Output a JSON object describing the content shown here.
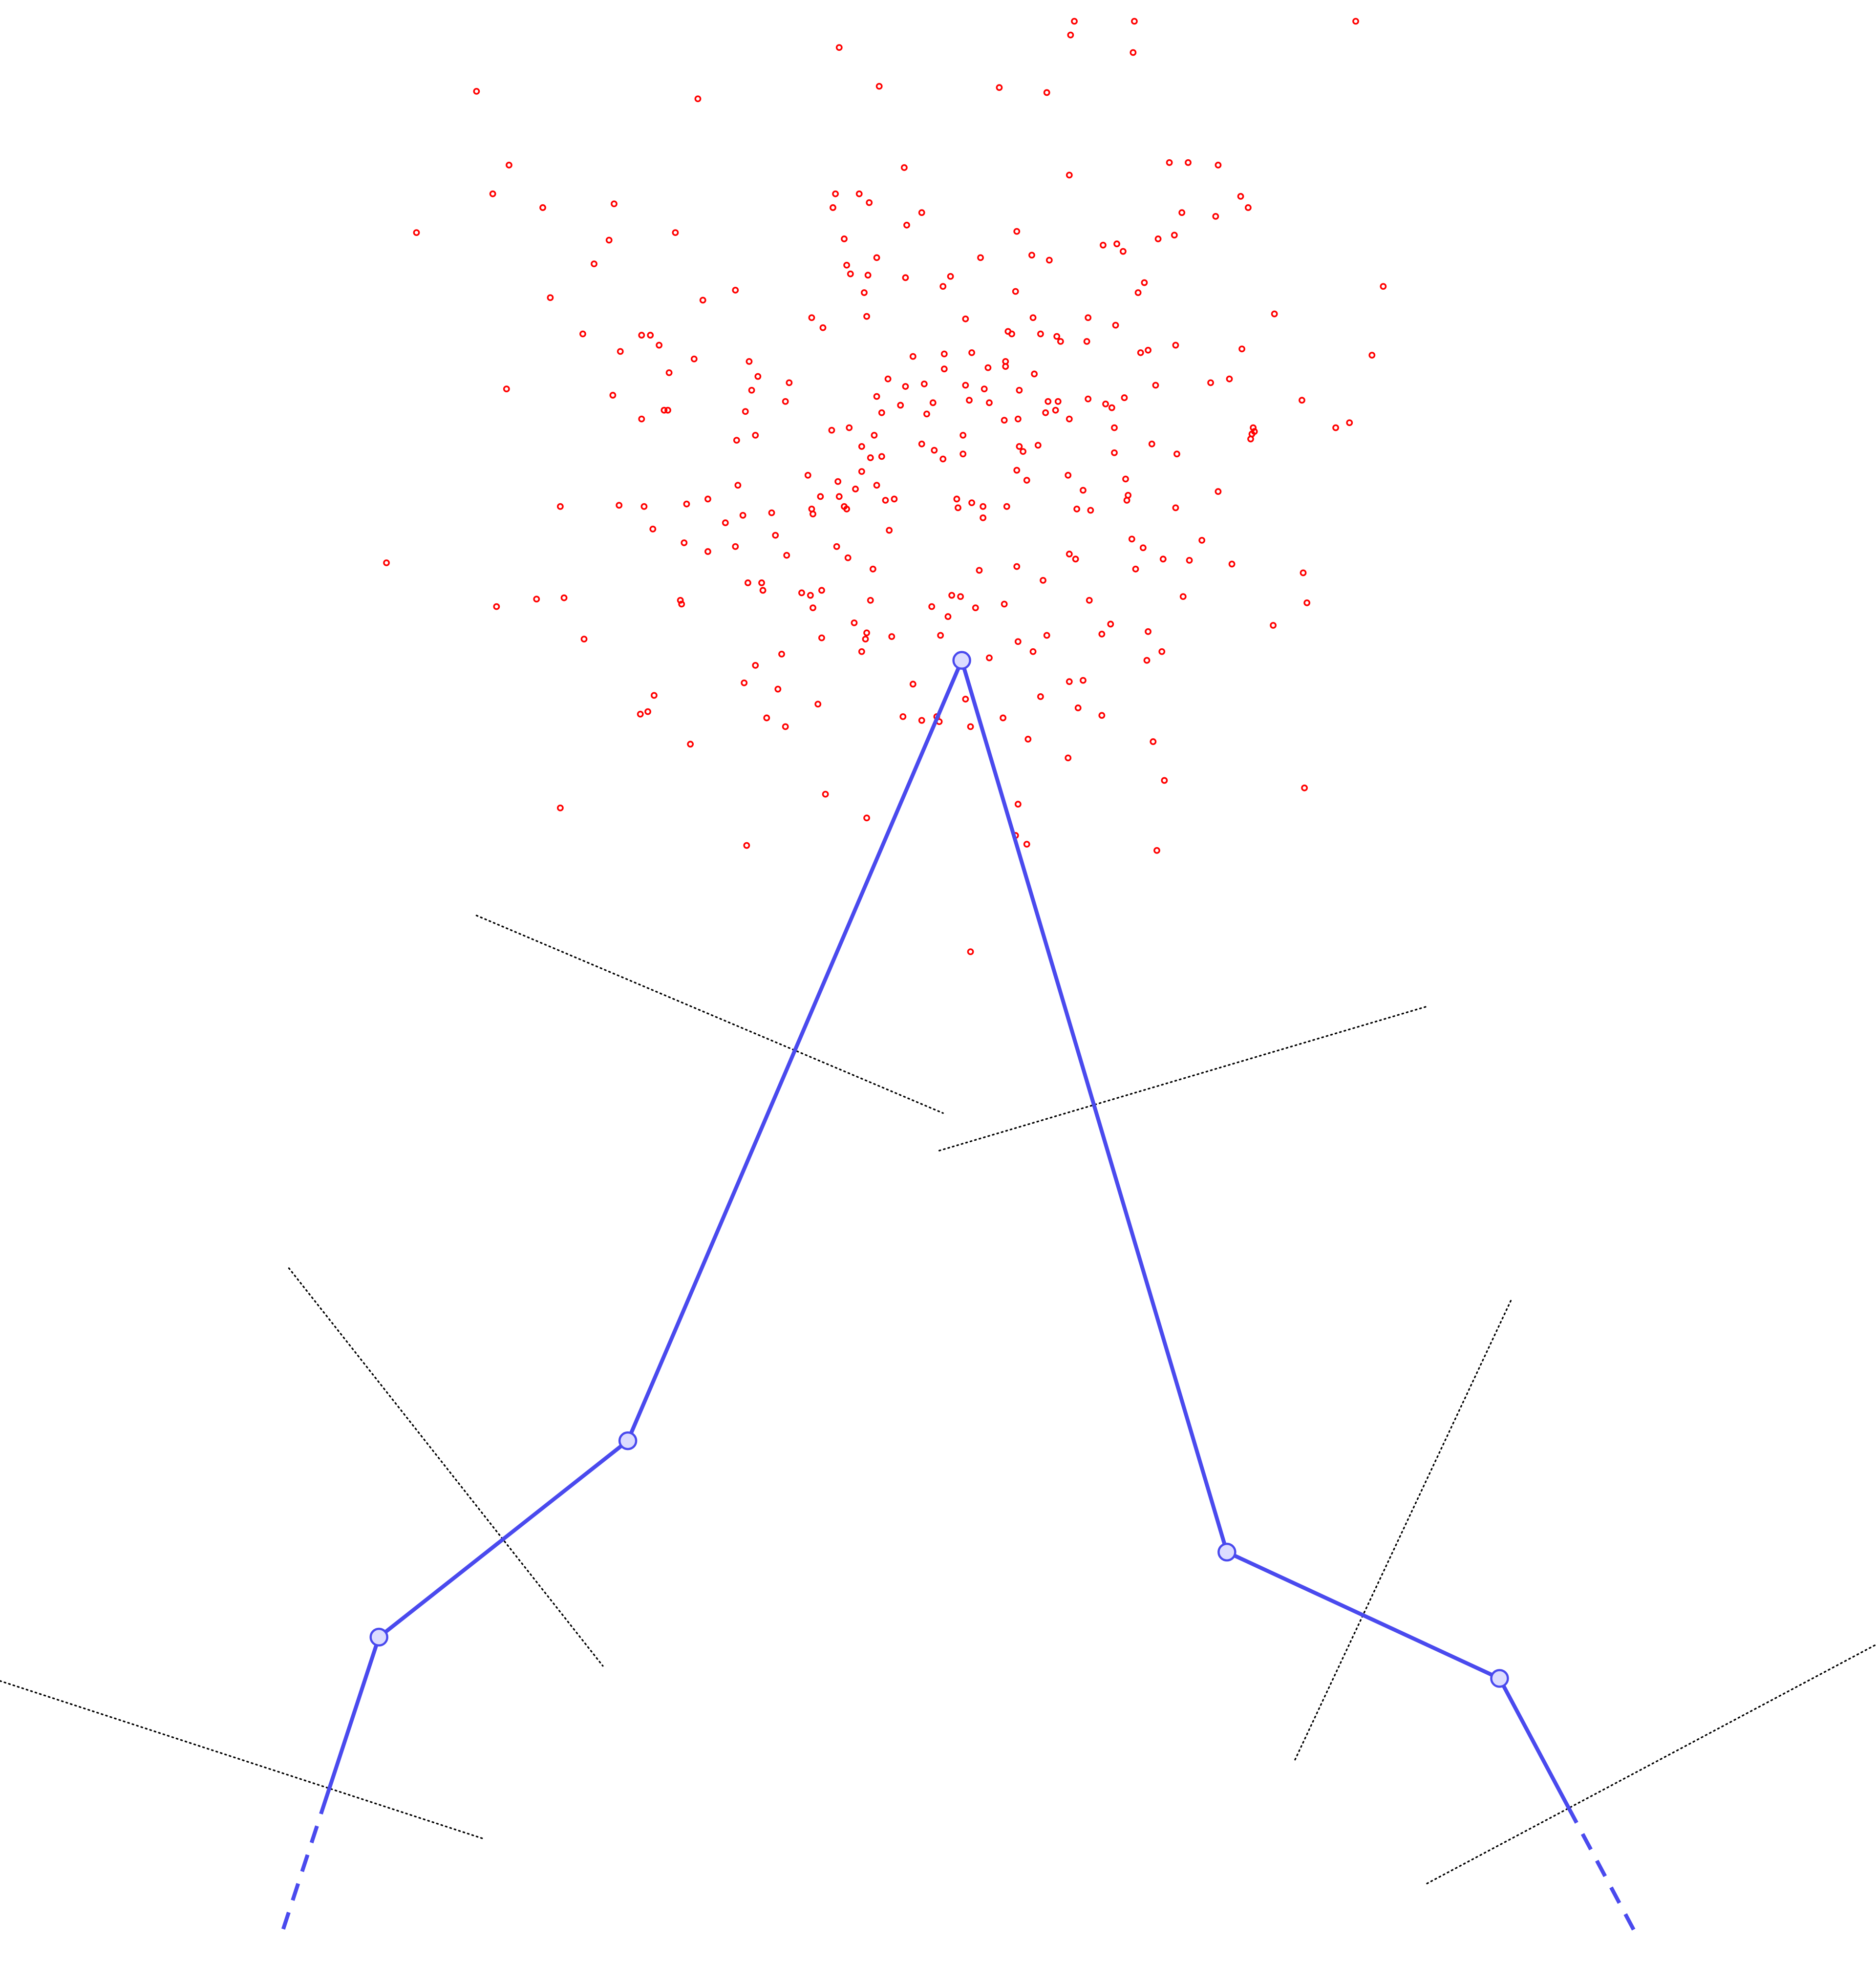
{
  "colors": {
    "background": "#ffffff",
    "points": "#ff0000",
    "polyline": "#4a4aee",
    "node_fill": "#dcdcff",
    "guide_lines": "#000000"
  },
  "point_count": 324,
  "node_count": 7
}
